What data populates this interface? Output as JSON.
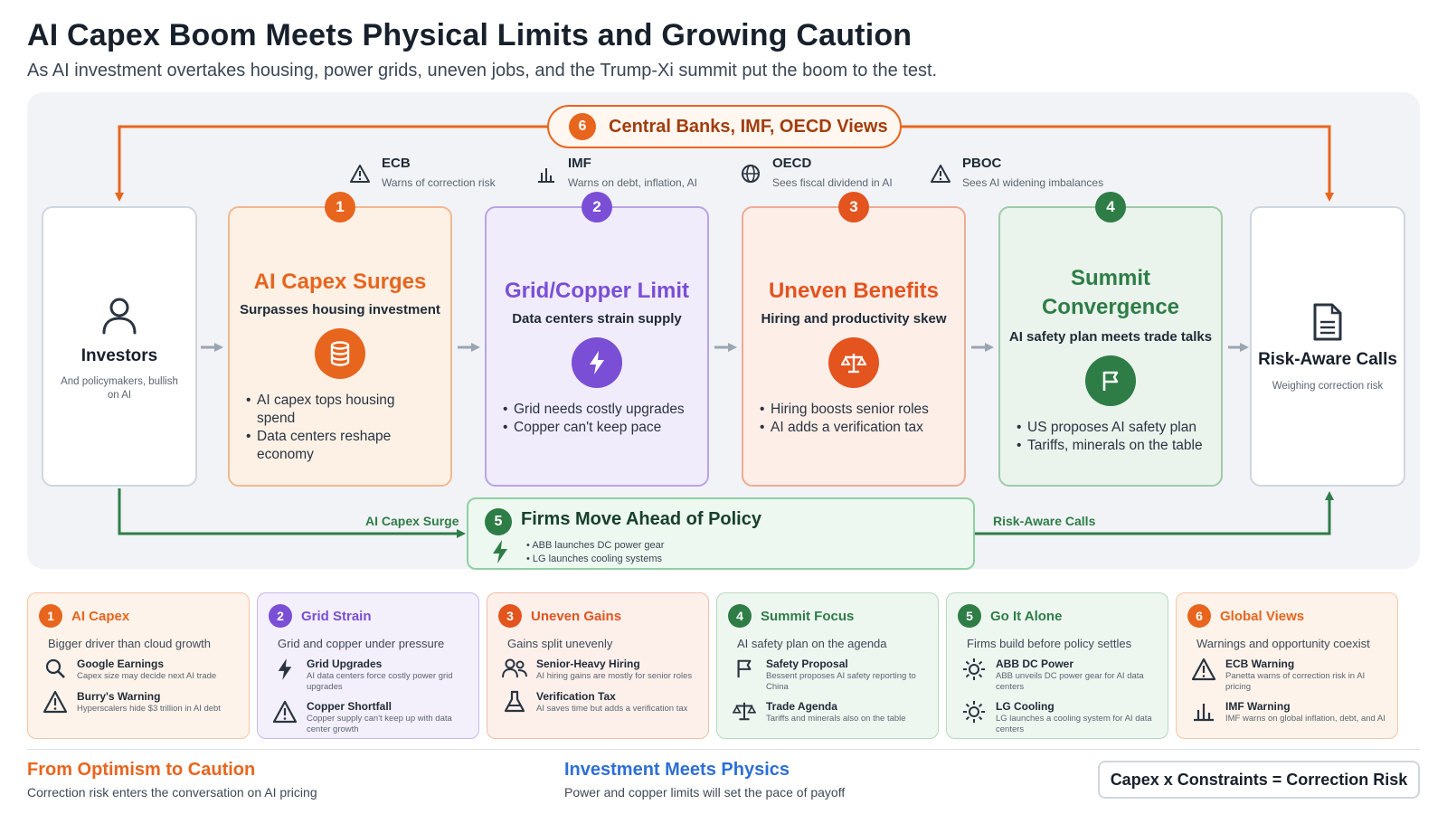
{
  "header": {
    "title": "AI Capex Boom Meets Physical Limits and Growing Caution",
    "subtitle": "As AI investment overtakes housing, power grids, uneven jobs, and the Trump-Xi summit put the boom to the test."
  },
  "top_pill": {
    "number": "6",
    "label": "Central Banks, IMF, OECD Views"
  },
  "institutions": [
    {
      "name": "ECB",
      "desc": "Warns of correction risk",
      "icon": "warning-icon"
    },
    {
      "name": "IMF",
      "desc": "Warns on debt, inflation, AI",
      "icon": "bar-chart-icon"
    },
    {
      "name": "OECD",
      "desc": "Sees fiscal dividend in AI",
      "icon": "globe-icon"
    },
    {
      "name": "PBOC",
      "desc": "Sees AI widening imbalances",
      "icon": "warning-icon"
    }
  ],
  "investors": {
    "title": "Investors",
    "desc": "And policymakers, bullish on AI",
    "icon": "user-icon"
  },
  "risk": {
    "title": "Risk-Aware Calls",
    "desc": "Weighing correction risk",
    "icon": "document-icon"
  },
  "stages": [
    {
      "number": "1",
      "title": "AI Capex Surges",
      "sub": "Surpasses housing investment",
      "icon": "database-icon",
      "color": "#e8651e",
      "bullets": [
        "AI capex tops housing spend",
        "Data centers reshape economy"
      ]
    },
    {
      "number": "2",
      "title": "Grid/Copper Limit",
      "sub": "Data centers strain supply",
      "icon": "lightning-icon",
      "color": "#7a4fd6",
      "bullets": [
        "Grid needs costly upgrades",
        "Copper can't keep pace"
      ]
    },
    {
      "number": "3",
      "title": "Uneven Benefits",
      "sub": "Hiring and productivity skew",
      "icon": "scale-icon",
      "color": "#e3541f",
      "bullets": [
        "Hiring boosts senior roles",
        "AI adds a verification tax"
      ]
    },
    {
      "number": "4",
      "title": "Summit Convergence",
      "sub": "AI safety plan meets trade talks",
      "icon": "flag-icon",
      "color": "#2e7d47",
      "bullets": [
        "US proposes AI safety plan",
        "Tariffs, minerals on the table"
      ]
    }
  ],
  "bottom_pill": {
    "number": "5",
    "title": "Firms Move Ahead of Policy",
    "icon": "lightning-icon",
    "bullets": [
      "ABB launches DC power gear",
      "LG launches cooling systems"
    ],
    "left_label": "AI Capex Surge",
    "right_label": "Risk-Aware Calls"
  },
  "cards": [
    {
      "number": "1",
      "title": "AI Capex",
      "sub": "Bigger driver than cloud growth",
      "color": "#e8651e",
      "bg": "#fdf3ea",
      "border": "#f5c6a3",
      "items": [
        {
          "icon": "search-icon",
          "name": "Google Earnings",
          "desc": "Capex size may decide next AI trade"
        },
        {
          "icon": "warning-icon",
          "name": "Burry's Warning",
          "desc": "Hyperscalers hide $3 trillion in AI debt"
        }
      ]
    },
    {
      "number": "2",
      "title": "Grid Strain",
      "sub": "Grid and copper under pressure",
      "color": "#7a4fd6",
      "bg": "#f3effb",
      "border": "#c9b7ec",
      "items": [
        {
          "icon": "lightning-icon",
          "name": "Grid Upgrades",
          "desc": "AI data centers force costly power grid upgrades"
        },
        {
          "icon": "warning-icon",
          "name": "Copper Shortfall",
          "desc": "Copper supply can't keep up with data center growth"
        }
      ]
    },
    {
      "number": "3",
      "title": "Uneven Gains",
      "sub": "Gains split unevenly",
      "color": "#e3541f",
      "bg": "#fdf0eb",
      "border": "#f2bca8",
      "items": [
        {
          "icon": "people-icon",
          "name": "Senior-Heavy Hiring",
          "desc": "AI hiring gains are mostly for senior roles"
        },
        {
          "icon": "flask-icon",
          "name": "Verification Tax",
          "desc": "AI saves time but adds a verification tax"
        }
      ]
    },
    {
      "number": "4",
      "title": "Summit Focus",
      "sub": "AI safety plan on the agenda",
      "color": "#2e7d47",
      "bg": "#eef6f0",
      "border": "#b6d9c0",
      "items": [
        {
          "icon": "flag-icon",
          "name": "Safety Proposal",
          "desc": "Bessent proposes AI safety reporting to China"
        },
        {
          "icon": "scale-icon",
          "name": "Trade Agenda",
          "desc": "Tariffs and minerals also on the table"
        }
      ]
    },
    {
      "number": "5",
      "title": "Go It Alone",
      "sub": "Firms build before policy settles",
      "color": "#2e7d47",
      "bg": "#eef6f0",
      "border": "#b6d9c0",
      "items": [
        {
          "icon": "sun-icon",
          "name": "ABB DC Power",
          "desc": "ABB unveils DC power gear for AI data centers"
        },
        {
          "icon": "sun-icon",
          "name": "LG Cooling",
          "desc": "LG launches a cooling system for AI data centers"
        }
      ]
    },
    {
      "number": "6",
      "title": "Global Views",
      "sub": "Warnings and opportunity coexist",
      "color": "#e8651e",
      "bg": "#fdf3ea",
      "border": "#f5c6a3",
      "items": [
        {
          "icon": "warning-icon",
          "name": "ECB Warning",
          "desc": "Panetta warns of correction risk in AI pricing"
        },
        {
          "icon": "bar-chart-icon",
          "name": "IMF Warning",
          "desc": "IMF warns on global inflation, debt, and AI"
        }
      ]
    }
  ],
  "footer": {
    "left_title": "From Optimism to Caution",
    "left_sub": "Correction risk enters the conversation on AI pricing",
    "left_color": "#e8651e",
    "mid_title": "Investment Meets Physics",
    "mid_sub": "Power and copper limits will set the pace of payoff",
    "mid_color": "#2d6fd6",
    "formula": "Capex x Constraints = Correction Risk"
  }
}
